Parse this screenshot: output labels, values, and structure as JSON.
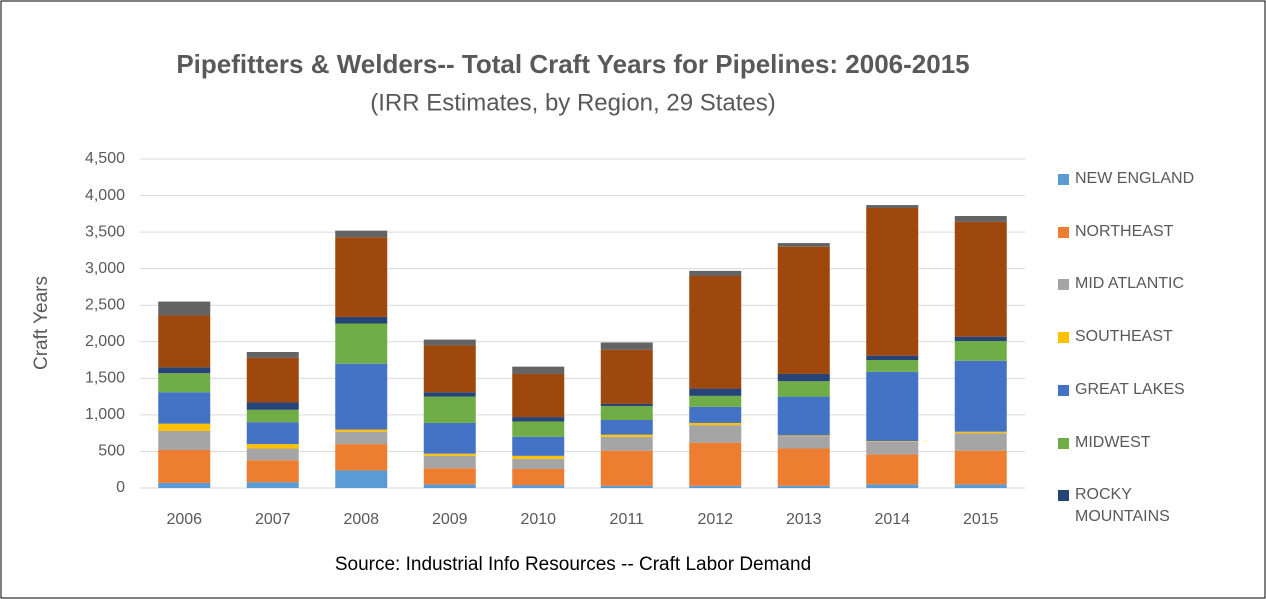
{
  "chart_data": {
    "type": "stacked_bar",
    "title": "Pipefitters  & Welders-- Total Craft Years for Pipelines: 2006-2015",
    "subtitle": "(IRR Estimates, by Region, 29 States)",
    "y_label": "Craft Years",
    "source": "Source: Industrial Info Resources -- Craft Labor Demand",
    "categories": [
      "2006",
      "2007",
      "2008",
      "2009",
      "2010",
      "2011",
      "2012",
      "2013",
      "2014",
      "2015"
    ],
    "series": [
      {
        "name": "NEW ENGLAND",
        "color": "#5b9bd5",
        "values": [
          70,
          80,
          240,
          50,
          40,
          30,
          30,
          30,
          50,
          50
        ]
      },
      {
        "name": "NORTHEAST",
        "color": "#ed7d31",
        "values": [
          450,
          300,
          360,
          220,
          220,
          480,
          590,
          510,
          410,
          460
        ]
      },
      {
        "name": "MID ATLANTIC",
        "color": "#a5a5a5",
        "values": [
          260,
          160,
          170,
          170,
          140,
          190,
          240,
          170,
          170,
          240
        ]
      },
      {
        "name": "SOUTHEAST",
        "color": "#ffc000",
        "values": [
          100,
          60,
          30,
          30,
          40,
          30,
          30,
          10,
          10,
          20
        ]
      },
      {
        "name": "GREAT LAKES",
        "color": "#4472c4",
        "values": [
          430,
          300,
          900,
          420,
          260,
          200,
          220,
          530,
          950,
          970
        ]
      },
      {
        "name": "MIDWEST",
        "color": "#70ad47",
        "values": [
          260,
          170,
          550,
          360,
          210,
          190,
          150,
          210,
          160,
          270
        ]
      },
      {
        "name": "ROCKY MOUNTAINS",
        "color": "#264478",
        "values": [
          80,
          100,
          90,
          60,
          60,
          30,
          100,
          100,
          60,
          60
        ]
      },
      {
        "color": "#9e480e",
        "values": [
          710,
          610,
          1090,
          640,
          590,
          740,
          1540,
          1740,
          2020,
          1570
        ]
      },
      {
        "color": "#636363",
        "values": [
          190,
          80,
          90,
          80,
          100,
          100,
          70,
          50,
          40,
          80
        ]
      }
    ],
    "ylim": [
      0,
      4500
    ],
    "yticks": [
      0,
      500,
      {
        "value": 1000,
        "label": "1,000"
      },
      {
        "value": 1500,
        "label": "1,500"
      },
      {
        "value": 2000,
        "label": "2,000"
      },
      {
        "value": 2500,
        "label": "2,500"
      },
      {
        "value": 3000,
        "label": "3,000"
      },
      {
        "value": 3500,
        "label": "3,500"
      },
      {
        "value": 4000,
        "label": "4,000"
      },
      {
        "value": 4500,
        "label": "4,500"
      }
    ],
    "grid": true,
    "legend": "right"
  }
}
